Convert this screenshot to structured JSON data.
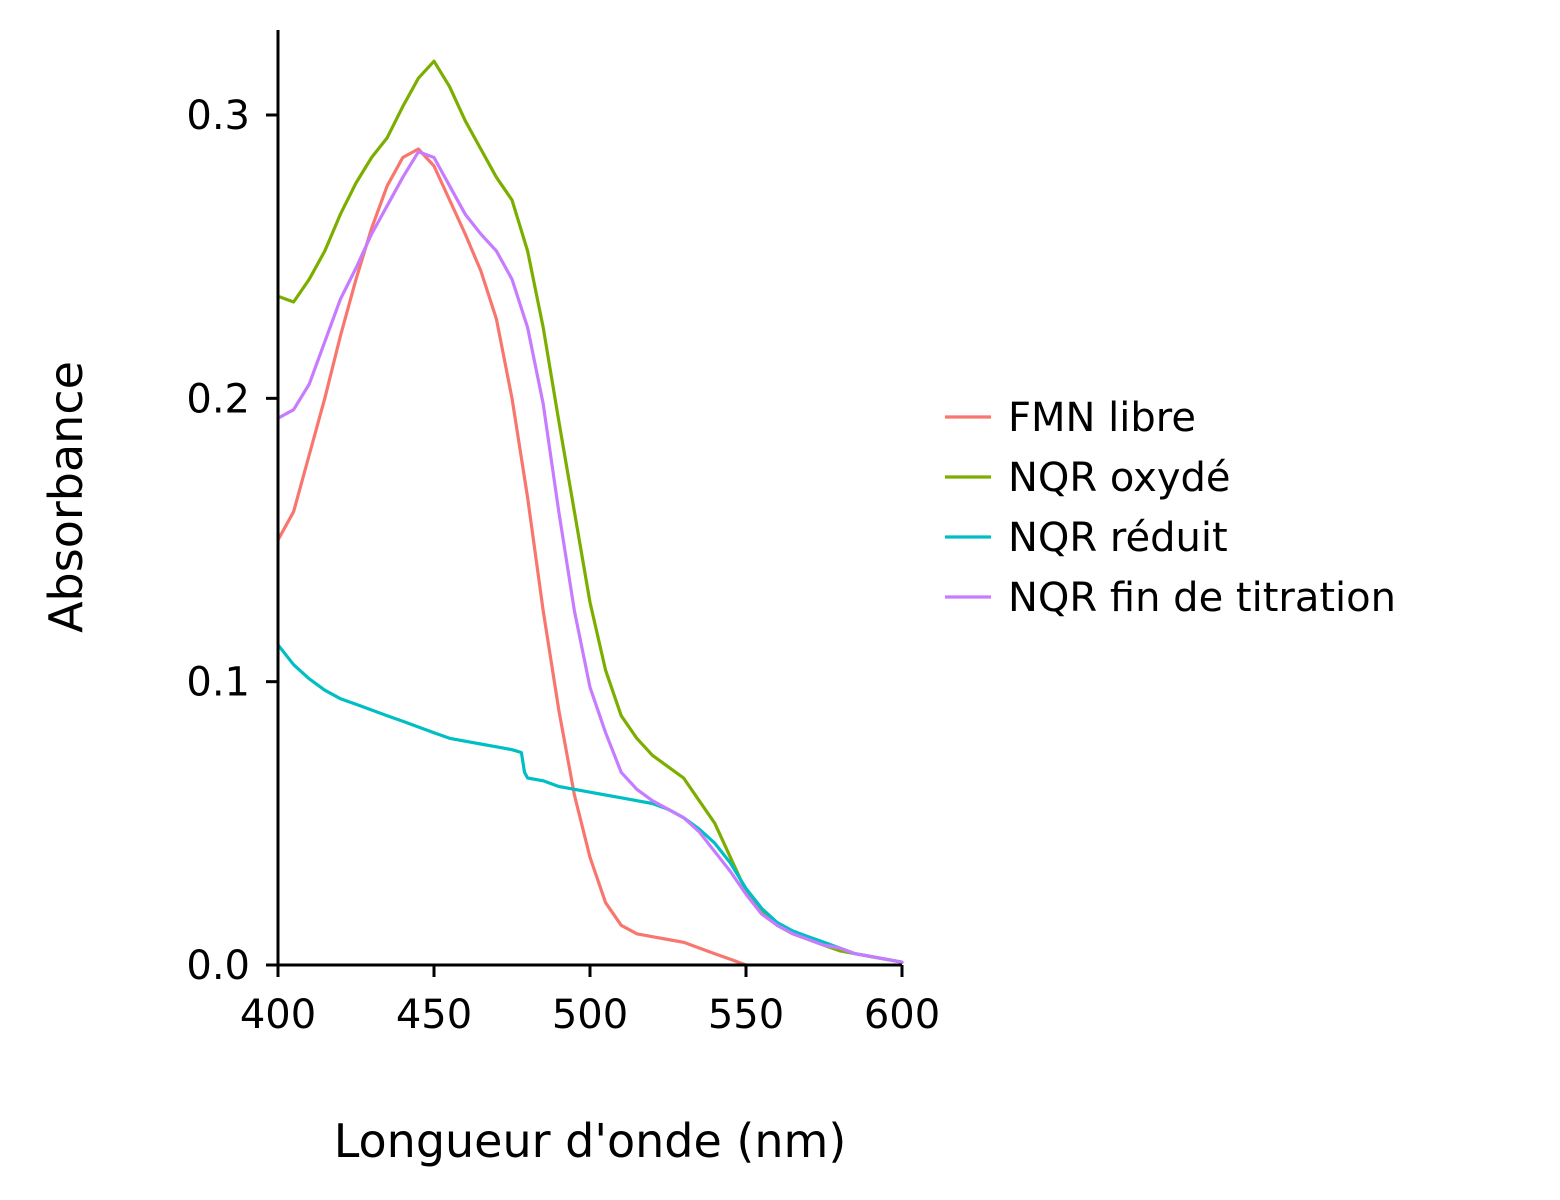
{
  "chart_data": {
    "type": "line",
    "xlabel": "Longueur d'onde (nm)",
    "ylabel": "Absorbance",
    "xlim": [
      400,
      600
    ],
    "ylim": [
      0,
      0.33
    ],
    "xticks": [
      400,
      450,
      500,
      550,
      600
    ],
    "xtick_labels": [
      "400",
      "450",
      "500",
      "550",
      "600"
    ],
    "yticks": [
      0.0,
      0.1,
      0.2,
      0.3
    ],
    "ytick_labels": [
      "0.0",
      "0.1",
      "0.2",
      "0.3"
    ],
    "grid": false,
    "legend_position": "right",
    "series": [
      {
        "name": "FMN libre",
        "color": "#F8766D",
        "x": [
          400,
          405,
          410,
          415,
          420,
          425,
          430,
          435,
          440,
          445,
          450,
          455,
          460,
          465,
          470,
          475,
          480,
          485,
          490,
          495,
          500,
          505,
          510,
          515,
          520,
          525,
          530,
          535,
          540,
          545,
          550
        ],
        "y": [
          0.15,
          0.16,
          0.18,
          0.2,
          0.222,
          0.242,
          0.26,
          0.275,
          0.285,
          0.288,
          0.282,
          0.27,
          0.258,
          0.245,
          0.228,
          0.2,
          0.165,
          0.125,
          0.09,
          0.06,
          0.038,
          0.022,
          0.014,
          0.011,
          0.01,
          0.009,
          0.008,
          0.006,
          0.004,
          0.002,
          0.0
        ]
      },
      {
        "name": "NQR oxydé",
        "color": "#7CAE00",
        "x": [
          400,
          405,
          410,
          415,
          420,
          425,
          430,
          435,
          440,
          445,
          450,
          455,
          460,
          465,
          470,
          475,
          480,
          485,
          490,
          495,
          500,
          505,
          510,
          515,
          520,
          525,
          530,
          535,
          540,
          545,
          550,
          555,
          560,
          565,
          570,
          575,
          580,
          585,
          590,
          595,
          600
        ],
        "y": [
          0.236,
          0.234,
          0.242,
          0.252,
          0.265,
          0.276,
          0.285,
          0.292,
          0.303,
          0.313,
          0.319,
          0.31,
          0.298,
          0.288,
          0.278,
          0.27,
          0.252,
          0.225,
          0.192,
          0.16,
          0.128,
          0.104,
          0.088,
          0.08,
          0.074,
          0.07,
          0.066,
          0.058,
          0.05,
          0.038,
          0.026,
          0.019,
          0.014,
          0.011,
          0.009,
          0.007,
          0.005,
          0.004,
          0.003,
          0.002,
          0.001
        ]
      },
      {
        "name": "NQR réduit",
        "color": "#00BFC4",
        "x": [
          400,
          405,
          410,
          415,
          420,
          425,
          430,
          435,
          440,
          445,
          450,
          455,
          460,
          465,
          470,
          475,
          478,
          479,
          480,
          485,
          490,
          495,
          500,
          505,
          510,
          515,
          520,
          525,
          530,
          535,
          540,
          545,
          550,
          555,
          560,
          565,
          570,
          575,
          580,
          585,
          590,
          595,
          600
        ],
        "y": [
          0.113,
          0.106,
          0.101,
          0.097,
          0.094,
          0.092,
          0.09,
          0.088,
          0.086,
          0.084,
          0.082,
          0.08,
          0.079,
          0.078,
          0.077,
          0.076,
          0.075,
          0.068,
          0.066,
          0.065,
          0.063,
          0.062,
          0.061,
          0.06,
          0.059,
          0.058,
          0.057,
          0.055,
          0.052,
          0.048,
          0.043,
          0.036,
          0.027,
          0.02,
          0.015,
          0.012,
          0.01,
          0.008,
          0.006,
          0.004,
          0.003,
          0.002,
          0.001
        ]
      },
      {
        "name": "NQR fin de titration",
        "color": "#C77CFF",
        "x": [
          400,
          405,
          410,
          415,
          420,
          425,
          430,
          435,
          440,
          445,
          450,
          455,
          460,
          465,
          470,
          475,
          480,
          485,
          490,
          495,
          500,
          505,
          510,
          515,
          520,
          525,
          530,
          535,
          540,
          545,
          550,
          555,
          560,
          565,
          570,
          575,
          580,
          585,
          590,
          595,
          600
        ],
        "y": [
          0.193,
          0.196,
          0.205,
          0.22,
          0.235,
          0.246,
          0.258,
          0.268,
          0.278,
          0.287,
          0.285,
          0.275,
          0.265,
          0.258,
          0.252,
          0.242,
          0.225,
          0.198,
          0.16,
          0.125,
          0.098,
          0.082,
          0.068,
          0.062,
          0.058,
          0.055,
          0.052,
          0.047,
          0.04,
          0.033,
          0.025,
          0.018,
          0.014,
          0.011,
          0.009,
          0.007,
          0.006,
          0.004,
          0.003,
          0.002,
          0.001
        ]
      }
    ]
  }
}
